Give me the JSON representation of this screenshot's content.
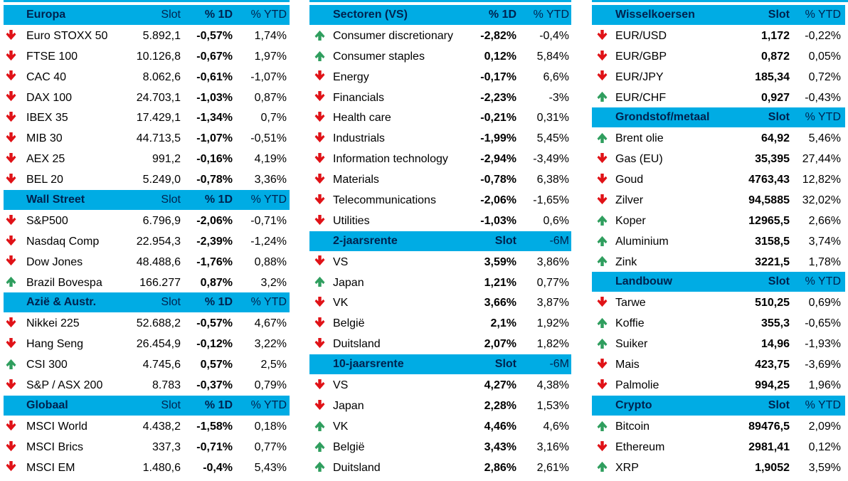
{
  "colors": {
    "header_fill": "#00ACE4",
    "header_text": "#00224E",
    "up_arrow": "#2F9E5E",
    "down_arrow": "#E01217",
    "text": "#000000"
  },
  "icons": {
    "up": "up-arrow-icon",
    "down": "down-arrow-icon"
  },
  "tables": [
    {
      "name": "europe-americas-asia-global",
      "bold_col": 1,
      "sections": [
        {
          "title": "Europa",
          "headers": [
            "Slot",
            "% 1D",
            "% YTD"
          ],
          "rows": [
            {
              "dir": "down",
              "label": "Euro STOXX 50",
              "values": [
                "5.892,1",
                "-0,57%",
                "1,74%"
              ]
            },
            {
              "dir": "down",
              "label": "FTSE 100",
              "values": [
                "10.126,8",
                "-0,67%",
                "1,97%"
              ]
            },
            {
              "dir": "down",
              "label": "CAC 40",
              "values": [
                "8.062,6",
                "-0,61%",
                "-1,07%"
              ]
            },
            {
              "dir": "down",
              "label": "DAX 100",
              "values": [
                "24.703,1",
                "-1,03%",
                "0,87%"
              ]
            },
            {
              "dir": "down",
              "label": "IBEX 35",
              "values": [
                "17.429,1",
                "-1,34%",
                "0,7%"
              ]
            },
            {
              "dir": "down",
              "label": "MIB 30",
              "values": [
                "44.713,5",
                "-1,07%",
                "-0,51%"
              ]
            },
            {
              "dir": "down",
              "label": "AEX 25",
              "values": [
                "991,2",
                "-0,16%",
                "4,19%"
              ]
            },
            {
              "dir": "down",
              "label": "BEL 20",
              "values": [
                "5.249,0",
                "-0,78%",
                "3,36%"
              ]
            }
          ]
        },
        {
          "title": "Wall Street",
          "headers": [
            "Slot",
            "% 1D",
            "% YTD"
          ],
          "rows": [
            {
              "dir": "down",
              "label": "S&P500",
              "values": [
                "6.796,9",
                "-2,06%",
                "-0,71%"
              ]
            },
            {
              "dir": "down",
              "label": "Nasdaq Comp",
              "values": [
                "22.954,3",
                "-2,39%",
                "-1,24%"
              ]
            },
            {
              "dir": "down",
              "label": "Dow Jones",
              "values": [
                "48.488,6",
                "-1,76%",
                "0,88%"
              ]
            },
            {
              "dir": "up",
              "label": "Brazil Bovespa",
              "values": [
                "166.277",
                "0,87%",
                "3,2%"
              ]
            }
          ]
        },
        {
          "title": "Azië & Austr.",
          "headers": [
            "Slot",
            "% 1D",
            "% YTD"
          ],
          "rows": [
            {
              "dir": "down",
              "label": "Nikkei 225",
              "values": [
                "52.688,2",
                "-0,57%",
                "4,67%"
              ]
            },
            {
              "dir": "down",
              "label": "Hang Seng",
              "values": [
                "26.454,9",
                "-0,12%",
                "3,22%"
              ]
            },
            {
              "dir": "up",
              "label": "CSI 300",
              "values": [
                "4.745,6",
                "0,57%",
                "2,5%"
              ]
            },
            {
              "dir": "down",
              "label": "S&P / ASX 200",
              "values": [
                "8.783",
                "-0,37%",
                "0,79%"
              ]
            }
          ]
        },
        {
          "title": "Globaal",
          "headers": [
            "Slot",
            "% 1D",
            "% YTD"
          ],
          "rows": [
            {
              "dir": "down",
              "label": "MSCI World",
              "values": [
                "4.438,2",
                "-1,58%",
                "0,18%"
              ]
            },
            {
              "dir": "down",
              "label": "MSCI Brics",
              "values": [
                "337,3",
                "-0,71%",
                "0,77%"
              ]
            },
            {
              "dir": "down",
              "label": "MSCI EM",
              "values": [
                "1.480,6",
                "-0,4%",
                "5,43%"
              ]
            }
          ]
        }
      ]
    },
    {
      "name": "sectors-rates",
      "bold_col": 0,
      "sections": [
        {
          "title": "Sectoren (VS)",
          "headers": [
            "% 1D",
            "% YTD"
          ],
          "rows": [
            {
              "dir": "up",
              "label": "Consumer discretionary",
              "values": [
                "-2,82%",
                "-0,4%"
              ]
            },
            {
              "dir": "up",
              "label": "Consumer staples",
              "values": [
                "0,12%",
                "5,84%"
              ]
            },
            {
              "dir": "down",
              "label": "Energy",
              "values": [
                "-0,17%",
                "6,6%"
              ]
            },
            {
              "dir": "down",
              "label": "Financials",
              "values": [
                "-2,23%",
                "-3%"
              ]
            },
            {
              "dir": "down",
              "label": "Health care",
              "values": [
                "-0,21%",
                "0,31%"
              ]
            },
            {
              "dir": "down",
              "label": "Industrials",
              "values": [
                "-1,99%",
                "5,45%"
              ]
            },
            {
              "dir": "down",
              "label": "Information technology",
              "values": [
                "-2,94%",
                "-3,49%"
              ]
            },
            {
              "dir": "down",
              "label": "Materials",
              "values": [
                "-0,78%",
                "6,38%"
              ]
            },
            {
              "dir": "down",
              "label": "Telecommunications",
              "values": [
                "-2,06%",
                "-1,65%"
              ]
            },
            {
              "dir": "down",
              "label": "Utilities",
              "values": [
                "-1,03%",
                "0,6%"
              ]
            }
          ]
        },
        {
          "title": "2-jaarsrente",
          "headers": [
            "Slot",
            "-6M"
          ],
          "rows": [
            {
              "dir": "down",
              "label": "VS",
              "values": [
                "3,59%",
                "3,86%"
              ]
            },
            {
              "dir": "up",
              "label": "Japan",
              "values": [
                "1,21%",
                "0,77%"
              ]
            },
            {
              "dir": "down",
              "label": "VK",
              "values": [
                "3,66%",
                "3,87%"
              ]
            },
            {
              "dir": "down",
              "label": "België",
              "values": [
                "2,1%",
                "1,92%"
              ]
            },
            {
              "dir": "down",
              "label": "Duitsland",
              "values": [
                "2,07%",
                "1,82%"
              ]
            }
          ]
        },
        {
          "title": "10-jaarsrente",
          "headers": [
            "Slot",
            "-6M"
          ],
          "rows": [
            {
              "dir": "down",
              "label": "VS",
              "values": [
                "4,27%",
                "4,38%"
              ]
            },
            {
              "dir": "down",
              "label": "Japan",
              "values": [
                "2,28%",
                "1,53%"
              ]
            },
            {
              "dir": "up",
              "label": "VK",
              "values": [
                "4,46%",
                "4,6%"
              ]
            },
            {
              "dir": "up",
              "label": "België",
              "values": [
                "3,43%",
                "3,16%"
              ]
            },
            {
              "dir": "up",
              "label": "Duitsland",
              "values": [
                "2,86%",
                "2,61%"
              ]
            }
          ]
        }
      ]
    },
    {
      "name": "currencies-commodities-crypto",
      "bold_col": 0,
      "sections": [
        {
          "title": "Wisselkoersen",
          "headers": [
            "Slot",
            "% YTD"
          ],
          "rows": [
            {
              "dir": "down",
              "label": "EUR/USD",
              "values": [
                "1,172",
                "-0,22%"
              ]
            },
            {
              "dir": "down",
              "label": "EUR/GBP",
              "values": [
                "0,872",
                "0,05%"
              ]
            },
            {
              "dir": "down",
              "label": "EUR/JPY",
              "values": [
                "185,34",
                "0,72%"
              ]
            },
            {
              "dir": "up",
              "label": "EUR/CHF",
              "values": [
                "0,927",
                "-0,43%"
              ]
            }
          ]
        },
        {
          "title": "Grondstof/metaal",
          "headers": [
            "Slot",
            "% YTD"
          ],
          "rows": [
            {
              "dir": "up",
              "label": "Brent olie",
              "values": [
                "64,92",
                "5,46%"
              ]
            },
            {
              "dir": "down",
              "label": "Gas (EU)",
              "values": [
                "35,395",
                "27,44%"
              ]
            },
            {
              "dir": "down",
              "label": "Goud",
              "values": [
                "4763,43",
                "12,82%"
              ]
            },
            {
              "dir": "down",
              "label": "Zilver",
              "values": [
                "94,5885",
                "32,02%"
              ]
            },
            {
              "dir": "up",
              "label": "Koper",
              "values": [
                "12965,5",
                "2,66%"
              ]
            },
            {
              "dir": "up",
              "label": "Aluminium",
              "values": [
                "3158,5",
                "3,74%"
              ]
            },
            {
              "dir": "up",
              "label": "Zink",
              "values": [
                "3221,5",
                "1,78%"
              ]
            }
          ]
        },
        {
          "title": "Landbouw",
          "headers": [
            "Slot",
            "% YTD"
          ],
          "rows": [
            {
              "dir": "down",
              "label": "Tarwe",
              "values": [
                "510,25",
                "0,69%"
              ]
            },
            {
              "dir": "up",
              "label": "Koffie",
              "values": [
                "355,3",
                "-0,65%"
              ]
            },
            {
              "dir": "up",
              "label": "Suiker",
              "values": [
                "14,96",
                "-1,93%"
              ]
            },
            {
              "dir": "down",
              "label": "Mais",
              "values": [
                "423,75",
                "-3,69%"
              ]
            },
            {
              "dir": "down",
              "label": "Palmolie",
              "values": [
                "994,25",
                "1,96%"
              ]
            }
          ]
        },
        {
          "title": "Crypto",
          "headers": [
            "Slot",
            "% YTD"
          ],
          "rows": [
            {
              "dir": "up",
              "label": "Bitcoin",
              "values": [
                "89476,5",
                "2,09%"
              ]
            },
            {
              "dir": "down",
              "label": "Ethereum",
              "values": [
                "2981,41",
                "0,12%"
              ]
            },
            {
              "dir": "up",
              "label": "XRP",
              "values": [
                "1,9052",
                "3,59%"
              ]
            }
          ]
        }
      ]
    }
  ]
}
